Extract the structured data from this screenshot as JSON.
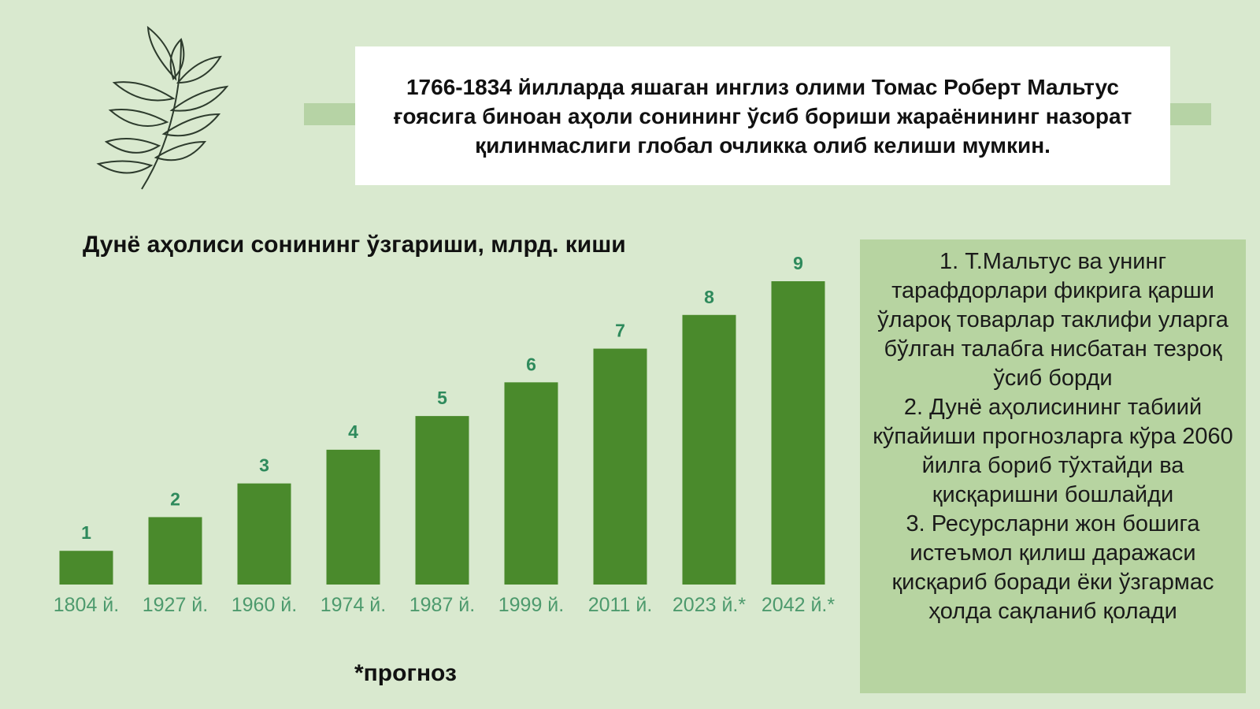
{
  "header": {
    "text": "1766-1834 йилларда яшаган инглиз олими Томас Роберт Мальтус ғоясига биноан аҳоли сонининг ўсиб бориши жараёнининг назорат қилинмаслиги глобал очликка олиб келиши мумкин."
  },
  "chart_data": {
    "type": "bar",
    "title": "Дунё аҳолиси сонининг ўзгариши, млрд. киши",
    "categories": [
      "1804 й.",
      "1927 й.",
      "1960 й.",
      "1974 й.",
      "1987 й.",
      "1999 й.",
      "2011 й.",
      "2023 й.*",
      "2042 й.*"
    ],
    "values": [
      1,
      2,
      3,
      4,
      5,
      6,
      7,
      8,
      9
    ],
    "color": "#4a8a2c",
    "ylim": [
      0,
      9
    ],
    "note": "*прогноз"
  },
  "side_panel": {
    "items": [
      "1. Т.Мальтус ва унинг тарафдорлари фикрига қарши ўлароқ товарлар таклифи уларга бўлган талабга нисбатан тезроқ ўсиб борди",
      "2. Дунё аҳолисининг табиий кўпайиши прогнозларга кўра 2060 йилга бориб тўхтайди ва қисқаришни бошлайди",
      "3. Ресурсларни жон бошига истеъмол қилиш даражаси қисқариб боради ёки ўзгармас ҳолда сақланиб қолади"
    ]
  }
}
